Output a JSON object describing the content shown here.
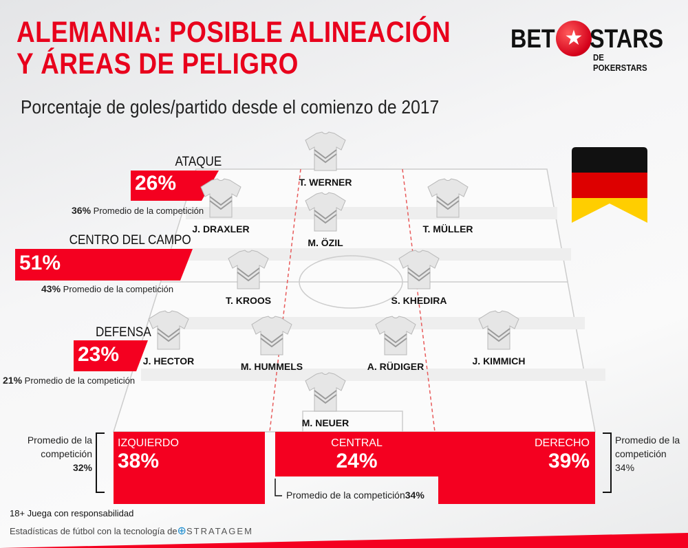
{
  "title_line1": "ALEMANIA: POSIBLE ALINEACIÓN",
  "title_line2": "Y ÁREAS DE PELIGRO",
  "subtitle": "Porcentaje de goles/partido desde el comienzo de 2017",
  "logo": {
    "bet": "BET",
    "stars": "STARS",
    "sub": "DE POKERSTARS"
  },
  "colors": {
    "accent": "#f40020",
    "flag": [
      "#000000",
      "#dd0000",
      "#ffce00"
    ]
  },
  "sections": [
    {
      "label": "ATAQUE",
      "value": "26%",
      "avg_value": "36%",
      "avg_text": "Promedio de la competición"
    },
    {
      "label": "CENTRO DEL CAMPO",
      "value": "51%",
      "avg_value": "43%",
      "avg_text": "Promedio de la competición"
    },
    {
      "label": "DEFENSA",
      "value": "23%",
      "avg_value": "21%",
      "avg_text": "Promedio de la competición"
    }
  ],
  "players": [
    "T. WERNER",
    "J. DRAXLER",
    "T. MÜLLER",
    "M. ÖZIL",
    "T. KROOS",
    "S. KHEDIRA",
    "J. HECTOR",
    "M. HUMMELS",
    "A. RÜDIGER",
    "J. KIMMICH",
    "M. NEUER"
  ],
  "zones": [
    {
      "label": "IZQUIERDO",
      "value": "38%",
      "avg_l1": "Promedio de la",
      "avg_l2": "competición",
      "avg_value": "32%"
    },
    {
      "label": "CENTRAL",
      "value": "24%",
      "avg_text": "Promedio de la competición",
      "avg_value": "34%"
    },
    {
      "label": "DERECHO",
      "value": "39%",
      "avg_l1": "Promedio de la",
      "avg_l2": "competición",
      "avg_value": "34%"
    }
  ],
  "footer": {
    "responsible": "18+ Juega con responsabilidad",
    "tech": "Estadísticas de fútbol con la tecnología de",
    "brand": "STRATAGEM"
  }
}
